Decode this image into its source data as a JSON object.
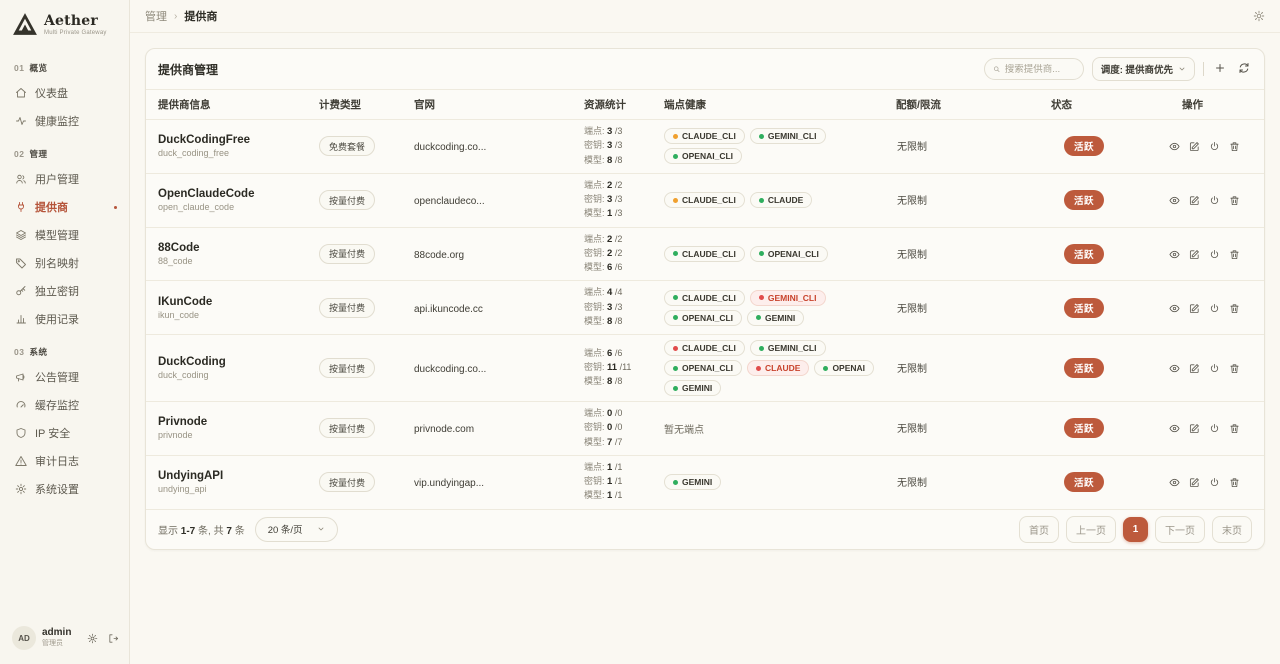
{
  "app": {
    "name": "Aether",
    "tagline": "Multi Private Gateway"
  },
  "colors": {
    "accent": "#bd5a3c",
    "health_ok": "#2fae5e",
    "health_warn": "#f0a02e",
    "health_down": "#e14b4b",
    "error_text": "#c8432c"
  },
  "sidebar": {
    "sections": [
      {
        "index": "01",
        "label": "概览",
        "items": [
          {
            "icon": "dashboard-icon",
            "label": "仪表盘"
          },
          {
            "icon": "health-icon",
            "label": "健康监控"
          }
        ]
      },
      {
        "index": "02",
        "label": "管理",
        "items": [
          {
            "icon": "users-icon",
            "label": "用户管理"
          },
          {
            "icon": "provider-icon",
            "label": "提供商",
            "active": true
          },
          {
            "icon": "models-icon",
            "label": "模型管理"
          },
          {
            "icon": "alias-icon",
            "label": "别名映射"
          },
          {
            "icon": "key-icon",
            "label": "独立密钥"
          },
          {
            "icon": "usage-icon",
            "label": "使用记录"
          }
        ]
      },
      {
        "index": "03",
        "label": "系统",
        "items": [
          {
            "icon": "announce-icon",
            "label": "公告管理"
          },
          {
            "icon": "cache-icon",
            "label": "缓存监控"
          },
          {
            "icon": "ipsecurity-icon",
            "label": "IP 安全"
          },
          {
            "icon": "audit-icon",
            "label": "审计日志"
          },
          {
            "icon": "settings-icon",
            "label": "系统设置"
          }
        ]
      }
    ],
    "user": {
      "initials": "AD",
      "name": "admin",
      "role": "管理员"
    }
  },
  "breadcrumb": {
    "parent": "管理",
    "current": "提供商"
  },
  "panel": {
    "title": "提供商管理",
    "search_placeholder": "搜索提供商...",
    "schedule_label": "调度: 提供商优先"
  },
  "table": {
    "headers": [
      "提供商信息",
      "计费类型",
      "官网",
      "资源统计",
      "端点健康",
      "配额/限流",
      "状态",
      "操作"
    ],
    "stat_labels": {
      "endpoint": "端点:",
      "key": "密钥:",
      "model": "模型:"
    },
    "empty_health": "暂无端点",
    "rows": [
      {
        "name": "DuckCodingFree",
        "code": "duck_coding_free",
        "billing": "免费套餐",
        "website": "duckcoding.co...",
        "stats": {
          "endpoints": [
            "3",
            "3"
          ],
          "keys": [
            "3",
            "3"
          ],
          "models": [
            "8",
            "8"
          ]
        },
        "health": [
          {
            "label": "CLAUDE_CLI",
            "status": "warn"
          },
          {
            "label": "GEMINI_CLI",
            "status": "ok"
          },
          {
            "label": "OPENAI_CLI",
            "status": "ok"
          }
        ],
        "quota": "无限制",
        "state": "活跃"
      },
      {
        "name": "OpenClaudeCode",
        "code": "open_claude_code",
        "billing": "按量付费",
        "website": "openclaudeco...",
        "stats": {
          "endpoints": [
            "2",
            "2"
          ],
          "keys": [
            "3",
            "3"
          ],
          "models": [
            "1",
            "3"
          ]
        },
        "health": [
          {
            "label": "CLAUDE_CLI",
            "status": "warn"
          },
          {
            "label": "CLAUDE",
            "status": "ok"
          }
        ],
        "quota": "无限制",
        "state": "活跃"
      },
      {
        "name": "88Code",
        "code": "88_code",
        "billing": "按量付费",
        "website": "88code.org",
        "stats": {
          "endpoints": [
            "2",
            "2"
          ],
          "keys": [
            "2",
            "2"
          ],
          "models": [
            "6",
            "6"
          ]
        },
        "health": [
          {
            "label": "CLAUDE_CLI",
            "status": "ok"
          },
          {
            "label": "OPENAI_CLI",
            "status": "ok"
          }
        ],
        "quota": "无限制",
        "state": "活跃"
      },
      {
        "name": "IKunCode",
        "code": "ikun_code",
        "billing": "按量付费",
        "website": "api.ikuncode.cc",
        "stats": {
          "endpoints": [
            "4",
            "4"
          ],
          "keys": [
            "3",
            "3"
          ],
          "models": [
            "8",
            "8"
          ]
        },
        "health": [
          {
            "label": "CLAUDE_CLI",
            "status": "ok"
          },
          {
            "label": "GEMINI_CLI",
            "status": "error"
          },
          {
            "label": "OPENAI_CLI",
            "status": "ok"
          },
          {
            "label": "GEMINI",
            "status": "ok"
          }
        ],
        "quota": "无限制",
        "state": "活跃"
      },
      {
        "name": "DuckCoding",
        "code": "duck_coding",
        "billing": "按量付费",
        "website": "duckcoding.co...",
        "stats": {
          "endpoints": [
            "6",
            "6"
          ],
          "keys": [
            "11",
            "11"
          ],
          "models": [
            "8",
            "8"
          ]
        },
        "health": [
          {
            "label": "CLAUDE_CLI",
            "status": "down"
          },
          {
            "label": "GEMINI_CLI",
            "status": "ok"
          },
          {
            "label": "OPENAI_CLI",
            "status": "ok"
          },
          {
            "label": "CLAUDE",
            "status": "error"
          },
          {
            "label": "OPENAI",
            "status": "ok"
          },
          {
            "label": "GEMINI",
            "status": "ok"
          }
        ],
        "quota": "无限制",
        "state": "活跃"
      },
      {
        "name": "Privnode",
        "code": "privnode",
        "billing": "按量付费",
        "website": "privnode.com",
        "stats": {
          "endpoints": [
            "0",
            "0"
          ],
          "keys": [
            "0",
            "0"
          ],
          "models": [
            "7",
            "7"
          ]
        },
        "health": [],
        "quota": "无限制",
        "state": "活跃"
      },
      {
        "name": "UndyingAPI",
        "code": "undying_api",
        "billing": "按量付费",
        "website": "vip.undyingap...",
        "stats": {
          "endpoints": [
            "1",
            "1"
          ],
          "keys": [
            "1",
            "1"
          ],
          "models": [
            "1",
            "1"
          ]
        },
        "health": [
          {
            "label": "GEMINI",
            "status": "ok"
          }
        ],
        "quota": "无限制",
        "state": "活跃"
      }
    ]
  },
  "footer": {
    "summary_parts": [
      "显示 ",
      "1-7",
      " 条, 共 ",
      "7",
      " 条"
    ],
    "per_page": "20 条/页",
    "nav": [
      {
        "key": "first",
        "label": "首页"
      },
      {
        "key": "prev",
        "label": "上一页"
      },
      {
        "key": "page-1",
        "label": "1",
        "active": true
      },
      {
        "key": "next",
        "label": "下一页"
      },
      {
        "key": "last",
        "label": "末页"
      }
    ]
  }
}
